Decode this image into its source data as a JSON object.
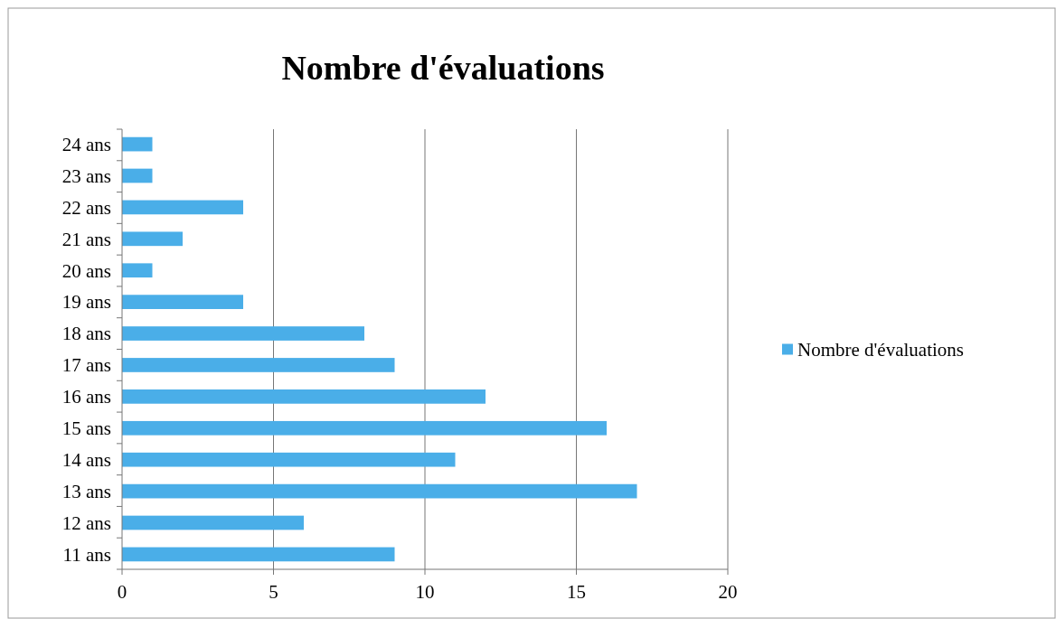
{
  "chart_data": {
    "type": "bar",
    "orientation": "horizontal",
    "title": "Nombre d'évaluations",
    "categories": [
      "24 ans",
      "23 ans",
      "22 ans",
      "21 ans",
      "20 ans",
      "19 ans",
      "18 ans",
      "17 ans",
      "16 ans",
      "15 ans",
      "14 ans",
      "13 ans",
      "12 ans",
      "11 ans"
    ],
    "series": [
      {
        "name": "Nombre d'évaluations",
        "color": "#4aaee8",
        "values": [
          1,
          1,
          4,
          2,
          1,
          4,
          8,
          9,
          12,
          16,
          11,
          17,
          6,
          9
        ]
      }
    ],
    "xlim": [
      0,
      20
    ],
    "xticks": [
      0,
      5,
      10,
      15,
      20
    ],
    "grid": "x",
    "legend": "right"
  }
}
